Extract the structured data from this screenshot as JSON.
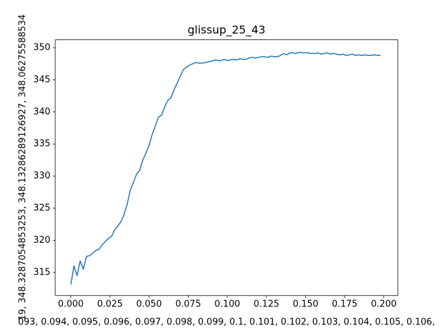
{
  "chart_data": {
    "type": "line",
    "title": "glissup_25_43",
    "x_label": "093, 0.094, 0.095, 0.096, 0.097, 0.098, 0.099, 0.1, 0.101, 0.102, 0.103, 0.104, 0.105, 0.106,",
    "y_label": "19, 348.3287054853253, 348.13286289126927, 348.06275588534",
    "x": [
      0.0,
      0.002,
      0.004,
      0.006,
      0.008,
      0.01,
      0.012,
      0.014,
      0.016,
      0.018,
      0.02,
      0.022,
      0.024,
      0.026,
      0.028,
      0.03,
      0.032,
      0.034,
      0.036,
      0.038,
      0.04,
      0.042,
      0.044,
      0.046,
      0.048,
      0.05,
      0.052,
      0.054,
      0.056,
      0.058,
      0.06,
      0.062,
      0.064,
      0.066,
      0.068,
      0.07,
      0.072,
      0.074,
      0.076,
      0.078,
      0.08,
      0.082,
      0.084,
      0.086,
      0.088,
      0.09,
      0.092,
      0.094,
      0.096,
      0.098,
      0.1,
      0.102,
      0.104,
      0.106,
      0.108,
      0.11,
      0.112,
      0.114,
      0.116,
      0.118,
      0.12,
      0.122,
      0.124,
      0.126,
      0.128,
      0.13,
      0.132,
      0.134,
      0.136,
      0.138,
      0.14,
      0.142,
      0.144,
      0.146,
      0.148,
      0.15,
      0.152,
      0.154,
      0.156,
      0.158,
      0.16,
      0.162,
      0.164,
      0.166,
      0.168,
      0.17,
      0.172,
      0.174,
      0.176,
      0.178,
      0.18,
      0.182,
      0.184,
      0.186,
      0.188,
      0.19,
      0.192,
      0.194,
      0.196,
      0.198
    ],
    "series": [
      {
        "color": "#1f77b4",
        "values": [
          313.1,
          316.0,
          314.5,
          316.8,
          315.5,
          317.5,
          317.6,
          318.0,
          318.4,
          318.6,
          319.3,
          319.8,
          320.3,
          320.6,
          321.6,
          322.2,
          322.9,
          324.0,
          325.6,
          327.8,
          329.0,
          330.3,
          330.9,
          332.5,
          333.6,
          334.8,
          336.5,
          337.8,
          339.2,
          339.5,
          340.8,
          341.8,
          342.2,
          343.5,
          344.5,
          345.6,
          346.6,
          347.0,
          347.3,
          347.5,
          347.7,
          347.6,
          347.6,
          347.7,
          347.8,
          347.9,
          348.1,
          348.0,
          348.0,
          348.2,
          348.0,
          348.1,
          348.2,
          348.1,
          348.3,
          348.2,
          348.2,
          348.4,
          348.5,
          348.4,
          348.5,
          348.6,
          348.6,
          348.5,
          348.7,
          348.6,
          348.6,
          348.8,
          349.1,
          348.9,
          349.2,
          349.2,
          349.1,
          349.3,
          349.2,
          349.2,
          349.2,
          349.1,
          349.1,
          349.2,
          349.0,
          349.1,
          349.2,
          349.0,
          349.1,
          349.0,
          348.9,
          349.0,
          348.8,
          348.9,
          349.0,
          348.8,
          348.9,
          348.8,
          348.9,
          348.8,
          348.8,
          348.9,
          348.8,
          348.8
        ]
      }
    ],
    "xlim": [
      -0.00995,
      0.20895
    ],
    "ylim": [
      311.4,
      351.23
    ],
    "xticks": [
      {
        "value": 0,
        "label": "0.000"
      },
      {
        "value": 0.025,
        "label": "0.025"
      },
      {
        "value": 0.05,
        "label": "0.050"
      },
      {
        "value": 0.075,
        "label": "0.075"
      },
      {
        "value": 0.1,
        "label": "0.100"
      },
      {
        "value": 0.125,
        "label": "0.125"
      },
      {
        "value": 0.15,
        "label": "0.150"
      },
      {
        "value": 0.175,
        "label": "0.175"
      },
      {
        "value": 0.2,
        "label": "0.200"
      }
    ],
    "yticks": [
      315,
      320,
      325,
      330,
      335,
      340,
      345,
      350
    ],
    "grid": false
  }
}
